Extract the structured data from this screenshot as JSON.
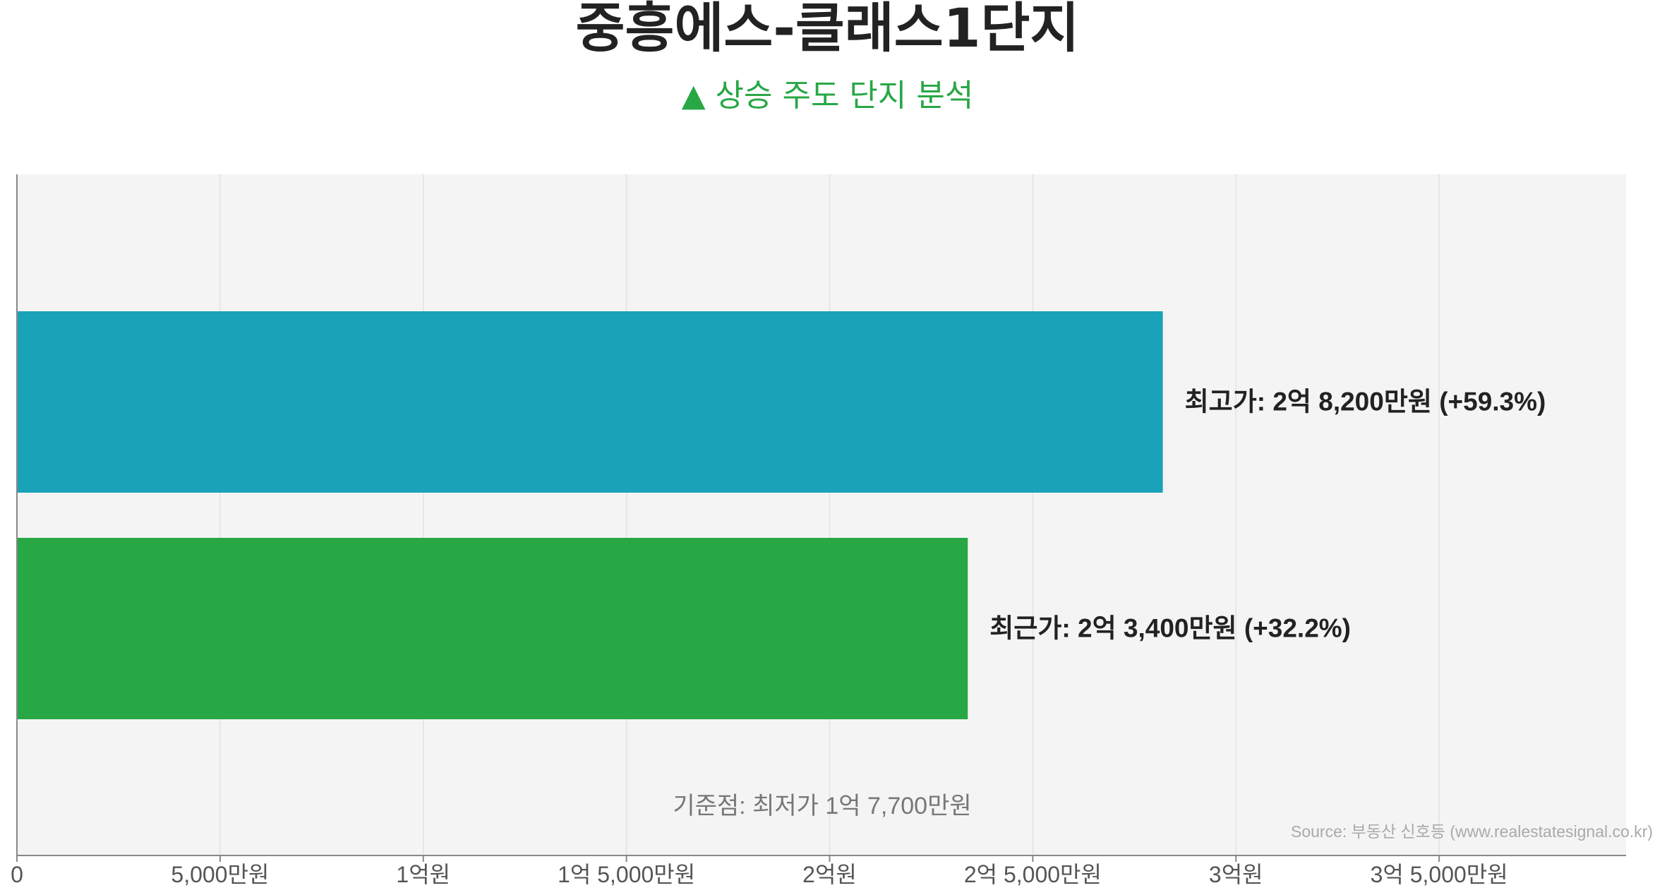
{
  "chart_data": {
    "type": "bar",
    "orientation": "horizontal",
    "title": "중흥에스-클래스1단지",
    "subtitle": "▲ 상승 주도 단지 분석",
    "categories": [
      "최고가",
      "최근가"
    ],
    "values": [
      28200,
      23400
    ],
    "value_unit": "만원",
    "bar_labels": [
      "최고가: 2억 8,200만원 (+59.3%)",
      "최근가: 2억 3,400만원 (+32.2%)"
    ],
    "xlim": [
      0,
      39600
    ],
    "xticks": [
      {
        "value": 0,
        "label": "0"
      },
      {
        "value": 5000,
        "label": "5,000만원"
      },
      {
        "value": 10000,
        "label": "1억원"
      },
      {
        "value": 15000,
        "label": "1억 5,000만원"
      },
      {
        "value": 20000,
        "label": "2억원"
      },
      {
        "value": 25000,
        "label": "2억 5,000만원"
      },
      {
        "value": 30000,
        "label": "3억원"
      },
      {
        "value": 35000,
        "label": "3억 5,000만원"
      }
    ],
    "baseline_note": "기준점: 최저가 1억 7,700만원",
    "source": "Source: 부동산 신호등 (www.realestatesignal.co.kr)",
    "grid": true,
    "legend": "none"
  },
  "colors": {
    "background": "#ffffff",
    "plot_background": "#f4f4f4",
    "grid": "#e2e2e2",
    "axis": "#888888",
    "bars": [
      "#1aa2b9",
      "#28a745"
    ],
    "subtitle": "#28a745",
    "label": "#222222",
    "tick": "#555555",
    "note": "#777777",
    "source": "#aaaaaa"
  }
}
